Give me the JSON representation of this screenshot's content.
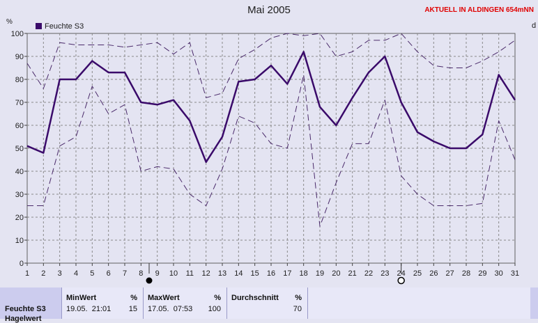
{
  "header": {
    "title": "Mai 2005",
    "location": "AKTUELL IN ALDINGEN 654mNN",
    "unit_left": "%",
    "unit_right": "d"
  },
  "colors": {
    "main_line": "#3a0a6a",
    "minmax_line": "#4a2a6a",
    "grid": "#8a8a8a",
    "plot_background": "#e4e4f2"
  },
  "chart_data": {
    "type": "line",
    "title": "Mai 2005",
    "xlabel": "",
    "ylabel": "%",
    "categories": [
      "1",
      "2",
      "3",
      "4",
      "5",
      "6",
      "7",
      "8",
      "9",
      "10",
      "11",
      "12",
      "13",
      "14",
      "15",
      "16",
      "17",
      "18",
      "19",
      "20",
      "21",
      "22",
      "23",
      "24",
      "25",
      "26",
      "27",
      "28",
      "29",
      "30",
      "31"
    ],
    "ylim": [
      0,
      100
    ],
    "yticks": [
      0,
      10,
      20,
      30,
      40,
      50,
      60,
      70,
      80,
      90,
      100
    ],
    "grid": true,
    "legend": "top-left",
    "series": [
      {
        "name": "Feuchte S3",
        "style": "solid-bold",
        "values": [
          51,
          48,
          80,
          80,
          88,
          83,
          83,
          70,
          69,
          71,
          62,
          44,
          55,
          79,
          80,
          86,
          78,
          92,
          68,
          60,
          72,
          83,
          90,
          70,
          57,
          53,
          50,
          50,
          56,
          82,
          71
        ]
      },
      {
        "style": "dashed",
        "values": [
          87,
          76,
          96,
          95,
          95,
          95,
          94,
          95,
          96,
          91,
          96,
          72,
          74,
          89,
          93,
          98,
          100,
          99,
          100,
          90,
          92,
          97,
          97,
          100,
          92,
          86,
          85,
          85,
          88,
          92,
          97
        ]
      },
      {
        "style": "dashed",
        "values": [
          25,
          25,
          51,
          55,
          77,
          65,
          69,
          40,
          42,
          41,
          30,
          25,
          41,
          64,
          61,
          52,
          50,
          82,
          16,
          35,
          52,
          52,
          71,
          38,
          30,
          25,
          25,
          25,
          26,
          62,
          45
        ]
      }
    ],
    "markers": [
      {
        "x": 8.5,
        "symbol": "filled-circle"
      },
      {
        "x": 24,
        "symbol": "open-circle"
      }
    ]
  },
  "stats": {
    "series": "Feuchte S3",
    "series_next": "Hagelwert",
    "min": {
      "label": "MinWert",
      "unit": "%",
      "date": "19.05.",
      "time": "21:01",
      "value": "15"
    },
    "max": {
      "label": "MaxWert",
      "unit": "%",
      "date": "17.05.",
      "time": "07:53",
      "value": "100"
    },
    "avg": {
      "label": "Durchschnitt",
      "unit": "%",
      "value": "70"
    }
  }
}
